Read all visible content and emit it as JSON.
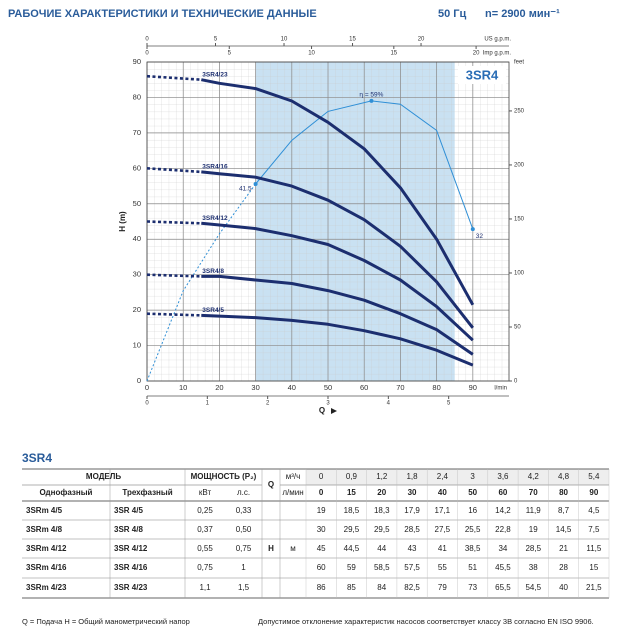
{
  "header": {
    "title": "РАБОЧИЕ ХАРАКТЕРИСТИКИ И ТЕХНИЧЕСКИЕ ДАННЫЕ",
    "frequency": "50 Гц",
    "speed": "n= 2900 мин⁻¹"
  },
  "chart_data": {
    "type": "line",
    "model_label": "3SR4",
    "x": [
      0,
      15,
      20,
      30,
      40,
      50,
      60,
      70,
      80,
      90
    ],
    "xlabel": "l/min",
    "xlim": [
      0,
      100
    ],
    "xticks": [
      0,
      10,
      20,
      30,
      40,
      50,
      60,
      70,
      80,
      90
    ],
    "ylabel": "H (m)",
    "ylim": [
      0,
      90
    ],
    "yticks": [
      0,
      10,
      20,
      30,
      40,
      50,
      60,
      70,
      80,
      90
    ],
    "y2label": "feet",
    "y2lim": [
      0,
      295.3
    ],
    "y2ticks": [
      0,
      50,
      100,
      150,
      200,
      250
    ],
    "top_axes": [
      {
        "label": "US g.p.m.",
        "lim": [
          0,
          26.42
        ],
        "ticks": [
          0,
          5,
          10,
          15,
          20
        ]
      },
      {
        "label": "Imp g.p.m.",
        "lim": [
          0,
          22
        ],
        "ticks": [
          0,
          5,
          10,
          15,
          20
        ]
      }
    ],
    "bottom_axis": {
      "label": "Q",
      "lim": [
        0,
        6
      ],
      "ticks": [
        0,
        1,
        2,
        3,
        4,
        5
      ]
    },
    "recommended_range": [
      30,
      85
    ],
    "grid": true,
    "series": [
      {
        "name": "3SR4/5",
        "color": "#1c2e6f",
        "values": [
          19,
          18.5,
          18.3,
          17.9,
          17.1,
          16,
          14.2,
          11.9,
          8.7,
          4.5
        ]
      },
      {
        "name": "3SR4/8",
        "color": "#1c2e6f",
        "values": [
          30,
          29.5,
          29.5,
          28.5,
          27.5,
          25.5,
          22.8,
          19,
          14.5,
          7.5
        ]
      },
      {
        "name": "3SR4/12",
        "color": "#1c2e6f",
        "values": [
          45,
          44.5,
          44,
          43,
          41,
          38.5,
          34,
          28.5,
          21,
          11.5
        ]
      },
      {
        "name": "3SR4/16",
        "color": "#1c2e6f",
        "values": [
          60,
          59,
          58.5,
          57.5,
          55,
          51,
          45.5,
          38,
          28,
          15
        ]
      },
      {
        "name": "3SR4/23",
        "color": "#1c2e6f",
        "values": [
          86,
          85,
          84,
          82.5,
          79,
          73,
          65.5,
          54.5,
          40,
          21.5
        ]
      }
    ],
    "efficiency": {
      "color": "#2f8fd6",
      "lim": [
        0,
        67.2
      ],
      "x": [
        0,
        10,
        20,
        30,
        40,
        50,
        62,
        70,
        80,
        90
      ],
      "values": [
        0,
        19,
        31,
        41.5,
        50.7,
        56.8,
        59,
        58.3,
        52.8,
        32
      ],
      "value_labels": [
        null,
        null,
        null,
        "41.5",
        null,
        null,
        "η = 59%",
        null,
        null,
        "32"
      ]
    }
  },
  "table": {
    "title": "3SR4",
    "header": {
      "model": "МОДЕЛЬ",
      "power": "МОЩНОСТЬ (P₂)",
      "q": "Q",
      "q_unit_m3h": "м³/ч",
      "q_unit_lmin": "л/мин",
      "single": "Однофазный",
      "three": "Трехфазный",
      "kw": "кВт",
      "hp": "л.с.",
      "h": "H",
      "h_unit": "м"
    },
    "flow_m3h": [
      "0",
      "0,9",
      "1,2",
      "1,8",
      "2,4",
      "3",
      "3,6",
      "4,2",
      "4,8",
      "5,4"
    ],
    "flow_lmin": [
      "0",
      "15",
      "20",
      "30",
      "40",
      "50",
      "60",
      "70",
      "80",
      "90"
    ],
    "rows": [
      [
        "3SRm 4/5",
        "3SR 4/5",
        "0,25",
        "0,33",
        "19",
        "18,5",
        "18,3",
        "17,9",
        "17,1",
        "16",
        "14,2",
        "11,9",
        "8,7",
        "4,5"
      ],
      [
        "3SRm 4/8",
        "3SR 4/8",
        "0,37",
        "0,50",
        "30",
        "29,5",
        "29,5",
        "28,5",
        "27,5",
        "25,5",
        "22,8",
        "19",
        "14,5",
        "7,5"
      ],
      [
        "3SRm 4/12",
        "3SR 4/12",
        "0,55",
        "0,75",
        "45",
        "44,5",
        "44",
        "43",
        "41",
        "38,5",
        "34",
        "28,5",
        "21",
        "11,5"
      ],
      [
        "3SRm 4/16",
        "3SR 4/16",
        "0,75",
        "1",
        "60",
        "59",
        "58,5",
        "57,5",
        "55",
        "51",
        "45,5",
        "38",
        "28",
        "15"
      ],
      [
        "3SRm 4/23",
        "3SR 4/23",
        "1,1",
        "1,5",
        "86",
        "85",
        "84",
        "82,5",
        "79",
        "73",
        "65,5",
        "54,5",
        "40",
        "21,5"
      ]
    ]
  },
  "footer": {
    "legend": "Q = Подача   H = Общий манометрический напор",
    "note": "Допустимое отклонение характеристик насосов соответствует классу 3B согласно EN ISO 9906."
  }
}
